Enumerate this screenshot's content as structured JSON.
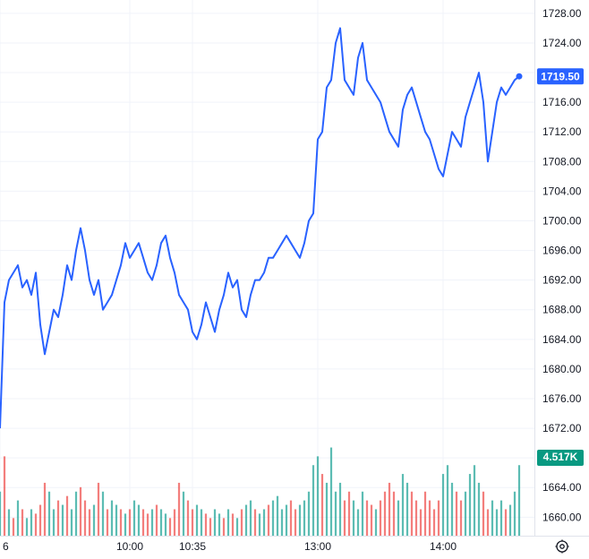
{
  "chart_data": {
    "type": "line",
    "y_ticks": [
      1660,
      1664,
      1668,
      1672,
      1676,
      1680,
      1684,
      1688,
      1692,
      1696,
      1700,
      1704,
      1708,
      1712,
      1716,
      1720,
      1724,
      1728
    ],
    "y_tick_labels": [
      "1660.00",
      "1664.00",
      "1668.00",
      "1672.00",
      "1676.00",
      "1680.00",
      "1684.00",
      "1688.00",
      "1692.00",
      "1696.00",
      "1700.00",
      "1704.00",
      "1708.00",
      "1712.00",
      "1716.00",
      "1720.00",
      "1724.00",
      "1728.00"
    ],
    "ylim": [
      1657.5,
      1729.8
    ],
    "x_ticks": [
      {
        "label": "6",
        "index": 0
      },
      {
        "label": "10:00",
        "index": 29
      },
      {
        "label": "10:35",
        "index": 43
      },
      {
        "label": "13:00",
        "index": 71
      },
      {
        "label": "14:00",
        "index": 99
      }
    ],
    "last_price": 1719.5,
    "last_price_label": "1719.50",
    "last_volume_label": "4.517K",
    "grid": true,
    "colors": {
      "line": "#2962ff",
      "up_volume": "#26a69a",
      "down_volume": "#ef5350",
      "price_badge": "#2962ff",
      "volume_badge": "#089981"
    },
    "series": [
      {
        "values": [
          1672,
          1689,
          1692,
          1693,
          1694,
          1691,
          1692,
          1690,
          1693,
          1686,
          1682,
          1685,
          1688,
          1687,
          1690,
          1694,
          1692,
          1696,
          1699,
          1696,
          1692,
          1690,
          1692,
          1688,
          1689,
          1690,
          1692,
          1694,
          1697,
          1695,
          1696,
          1697,
          1695,
          1693,
          1692,
          1694,
          1697,
          1698,
          1695,
          1693,
          1690,
          1689,
          1688,
          1685,
          1684,
          1686,
          1689,
          1687,
          1685,
          1688,
          1690,
          1693,
          1691,
          1692,
          1688,
          1687,
          1690,
          1692,
          1692,
          1693,
          1695,
          1695,
          1696,
          1697,
          1698,
          1697,
          1696,
          1695,
          1697,
          1700,
          1701,
          1711,
          1712,
          1718,
          1719,
          1724,
          1726,
          1719,
          1718,
          1717,
          1722,
          1724,
          1719,
          1718,
          1717,
          1716,
          1714,
          1712,
          1711,
          1710,
          1715,
          1717,
          1718,
          1716,
          1714,
          1712,
          1711,
          1709,
          1707,
          1706,
          1709,
          1712,
          1711,
          1710,
          1714,
          1716,
          1718,
          1720,
          1716,
          1708,
          1712,
          1716,
          1718,
          1717,
          1718,
          1719,
          1719.5
        ]
      }
    ],
    "volume": {
      "ylim": [
        0,
        1.3
      ],
      "values": [
        0.5,
        0.9,
        0.3,
        0.2,
        0.4,
        0.3,
        0.2,
        0.3,
        0.25,
        0.35,
        0.6,
        0.5,
        0.3,
        0.4,
        0.35,
        0.45,
        0.3,
        0.5,
        0.55,
        0.4,
        0.3,
        0.35,
        0.6,
        0.5,
        0.3,
        0.4,
        0.35,
        0.3,
        0.25,
        0.3,
        0.4,
        0.35,
        0.3,
        0.25,
        0.3,
        0.35,
        0.3,
        0.25,
        0.2,
        0.3,
        0.6,
        0.5,
        0.4,
        0.3,
        0.35,
        0.3,
        0.25,
        0.2,
        0.3,
        0.25,
        0.2,
        0.3,
        0.25,
        0.2,
        0.3,
        0.35,
        0.4,
        0.3,
        0.25,
        0.3,
        0.35,
        0.4,
        0.45,
        0.3,
        0.35,
        0.4,
        0.3,
        0.35,
        0.4,
        0.5,
        0.8,
        0.9,
        0.7,
        0.6,
        1.0,
        0.5,
        0.6,
        0.4,
        0.5,
        0.4,
        0.3,
        0.5,
        0.4,
        0.35,
        0.3,
        0.4,
        0.5,
        0.6,
        0.5,
        0.4,
        0.7,
        0.6,
        0.5,
        0.4,
        0.3,
        0.5,
        0.4,
        0.3,
        0.4,
        0.7,
        0.8,
        0.6,
        0.5,
        0.4,
        0.5,
        0.7,
        0.8,
        0.6,
        0.5,
        0.3,
        0.4,
        0.3,
        0.4,
        0.3,
        0.35,
        0.5,
        0.8
      ],
      "up": [
        1,
        0,
        1,
        0,
        1,
        0,
        1,
        1,
        0,
        0,
        0,
        1,
        1,
        0,
        1,
        0,
        1,
        1,
        0,
        0,
        0,
        1,
        0,
        1,
        0,
        1,
        1,
        0,
        1,
        0,
        1,
        1,
        0,
        0,
        1,
        0,
        1,
        1,
        0,
        0,
        0,
        1,
        0,
        0,
        1,
        1,
        0,
        0,
        1,
        1,
        0,
        1,
        0,
        1,
        0,
        1,
        1,
        0,
        1,
        1,
        0,
        1,
        1,
        1,
        1,
        0,
        0,
        1,
        1,
        1,
        1,
        1,
        0,
        1,
        1,
        1,
        1,
        0,
        0,
        1,
        1,
        1,
        0,
        0,
        1,
        0,
        0,
        0,
        0,
        1,
        1,
        1,
        0,
        0,
        0,
        0,
        0,
        0,
        0,
        1,
        1,
        1,
        0,
        0,
        1,
        1,
        1,
        1,
        0,
        0,
        1,
        1,
        1,
        0,
        1,
        1,
        1
      ]
    }
  }
}
